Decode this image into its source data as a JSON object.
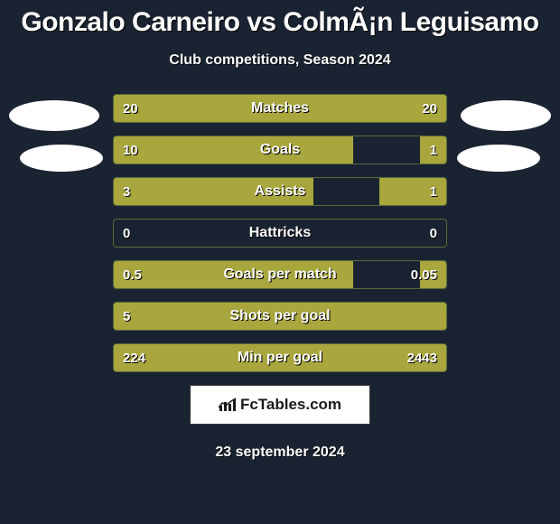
{
  "title": "Gonzalo Carneiro vs ColmÃ¡n Leguisamo",
  "subtitle": "Club competitions, Season 2024",
  "date": "23 september 2024",
  "logo_text": "FcTables.com",
  "colors": {
    "background": "#1a2332",
    "bar_fill": "#a8a63c",
    "bar_border": "#5a6a3a",
    "text": "#ffffff",
    "avatar": "#ffffff"
  },
  "bars": [
    {
      "label": "Matches",
      "left_val": "20",
      "right_val": "20",
      "left_pct": 50,
      "right_pct": 50
    },
    {
      "label": "Goals",
      "left_val": "10",
      "right_val": "1",
      "left_pct": 72,
      "right_pct": 8
    },
    {
      "label": "Assists",
      "left_val": "3",
      "right_val": "1",
      "left_pct": 60,
      "right_pct": 20
    },
    {
      "label": "Hattricks",
      "left_val": "0",
      "right_val": "0",
      "left_pct": 0,
      "right_pct": 0
    },
    {
      "label": "Goals per match",
      "left_val": "0.5",
      "right_val": "0.05",
      "left_pct": 72,
      "right_pct": 8
    },
    {
      "label": "Shots per goal",
      "left_val": "5",
      "right_val": "",
      "left_pct": 100,
      "right_pct": 0
    },
    {
      "label": "Min per goal",
      "left_val": "224",
      "right_val": "2443",
      "left_pct": 8,
      "right_pct": 92
    }
  ]
}
